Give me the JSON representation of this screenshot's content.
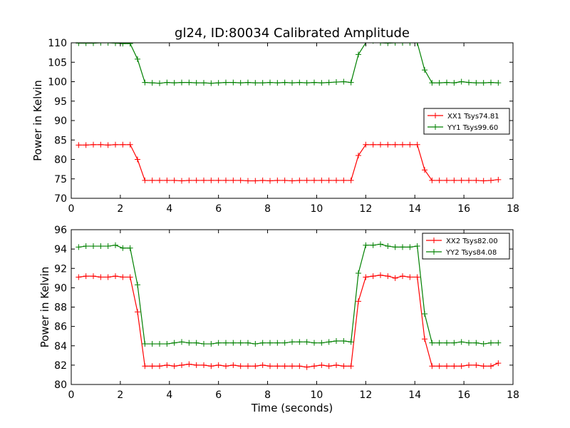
{
  "chart_data": [
    {
      "type": "line",
      "title": "gl24, ID:80034 Calibrated Amplitude",
      "xlabel": "",
      "ylabel": "Power in Kelvin",
      "xlim": [
        0,
        18
      ],
      "ylim": [
        70,
        110
      ],
      "xticks": [
        0,
        2,
        4,
        6,
        8,
        10,
        12,
        14,
        16,
        18
      ],
      "yticks": [
        70,
        75,
        80,
        85,
        90,
        95,
        100,
        105,
        110
      ],
      "grid": false,
      "legend_position": "right",
      "colors": {
        "XX1 Tsys74.81": "#ff0000",
        "YY1 Tsys99.60": "#008000"
      },
      "x": [
        0.3,
        0.6,
        0.9,
        1.2,
        1.5,
        1.8,
        2.1,
        2.4,
        2.7,
        3.0,
        3.3,
        3.6,
        3.9,
        4.2,
        4.5,
        4.8,
        5.1,
        5.4,
        5.7,
        6.0,
        6.3,
        6.6,
        6.9,
        7.2,
        7.5,
        7.8,
        8.1,
        8.4,
        8.7,
        9.0,
        9.3,
        9.6,
        9.9,
        10.2,
        10.5,
        10.8,
        11.1,
        11.4,
        11.7,
        12.0,
        12.3,
        12.6,
        12.9,
        13.2,
        13.5,
        13.8,
        14.1,
        14.4,
        14.7,
        15.0,
        15.3,
        15.6,
        15.9,
        16.2,
        16.5,
        16.8,
        17.1,
        17.4
      ],
      "series": [
        {
          "name": "XX1 Tsys74.81",
          "values": [
            83.7,
            83.7,
            83.8,
            83.8,
            83.7,
            83.8,
            83.8,
            83.8,
            80.0,
            74.6,
            74.6,
            74.6,
            74.6,
            74.6,
            74.5,
            74.6,
            74.6,
            74.6,
            74.6,
            74.6,
            74.6,
            74.6,
            74.6,
            74.5,
            74.5,
            74.6,
            74.5,
            74.6,
            74.6,
            74.5,
            74.6,
            74.6,
            74.6,
            74.6,
            74.6,
            74.6,
            74.6,
            74.6,
            81.0,
            83.8,
            83.8,
            83.8,
            83.8,
            83.8,
            83.8,
            83.8,
            83.8,
            77.3,
            74.6,
            74.6,
            74.6,
            74.6,
            74.6,
            74.6,
            74.6,
            74.5,
            74.6,
            74.8
          ]
        },
        {
          "name": "YY1 Tsys99.60",
          "values": [
            109.9,
            109.9,
            109.9,
            110.0,
            110.0,
            109.9,
            109.8,
            109.8,
            105.8,
            99.8,
            99.7,
            99.6,
            99.8,
            99.7,
            99.8,
            99.8,
            99.7,
            99.7,
            99.6,
            99.7,
            99.8,
            99.8,
            99.7,
            99.8,
            99.7,
            99.7,
            99.8,
            99.7,
            99.8,
            99.7,
            99.8,
            99.7,
            99.8,
            99.7,
            99.8,
            99.9,
            100.0,
            99.8,
            107.0,
            110.0,
            110.5,
            110.0,
            109.9,
            110.0,
            110.0,
            110.0,
            110.0,
            103.0,
            99.7,
            99.7,
            99.8,
            99.7,
            100.0,
            99.8,
            99.7,
            99.7,
            99.8,
            99.7
          ]
        }
      ]
    },
    {
      "type": "line",
      "title": "",
      "xlabel": "Time (seconds)",
      "ylabel": "Power in Kelvin",
      "xlim": [
        0,
        18
      ],
      "ylim": [
        80,
        96
      ],
      "xticks": [
        0,
        2,
        4,
        6,
        8,
        10,
        12,
        14,
        16,
        18
      ],
      "yticks": [
        80,
        82,
        84,
        86,
        88,
        90,
        92,
        94,
        96
      ],
      "grid": false,
      "legend_position": "top-right",
      "colors": {
        "XX2 Tsys82.00": "#ff0000",
        "YY2 Tsys84.08": "#008000"
      },
      "x": [
        0.3,
        0.6,
        0.9,
        1.2,
        1.5,
        1.8,
        2.1,
        2.4,
        2.7,
        3.0,
        3.3,
        3.6,
        3.9,
        4.2,
        4.5,
        4.8,
        5.1,
        5.4,
        5.7,
        6.0,
        6.3,
        6.6,
        6.9,
        7.2,
        7.5,
        7.8,
        8.1,
        8.4,
        8.7,
        9.0,
        9.3,
        9.6,
        9.9,
        10.2,
        10.5,
        10.8,
        11.1,
        11.4,
        11.7,
        12.0,
        12.3,
        12.6,
        12.9,
        13.2,
        13.5,
        13.8,
        14.1,
        14.4,
        14.7,
        15.0,
        15.3,
        15.6,
        15.9,
        16.2,
        16.5,
        16.8,
        17.1,
        17.4
      ],
      "series": [
        {
          "name": "XX2 Tsys82.00",
          "values": [
            91.1,
            91.2,
            91.2,
            91.1,
            91.1,
            91.2,
            91.1,
            91.1,
            87.5,
            81.9,
            81.9,
            81.9,
            82.0,
            81.9,
            82.0,
            82.1,
            82.0,
            82.0,
            81.9,
            82.0,
            81.9,
            82.0,
            81.9,
            81.9,
            81.9,
            82.0,
            81.9,
            81.9,
            81.9,
            81.9,
            81.9,
            81.8,
            81.9,
            82.0,
            81.9,
            82.0,
            81.9,
            81.9,
            88.6,
            91.1,
            91.2,
            91.3,
            91.2,
            91.0,
            91.2,
            91.1,
            91.1,
            84.7,
            81.9,
            81.9,
            81.9,
            81.9,
            81.9,
            82.0,
            82.0,
            81.9,
            81.9,
            82.2
          ]
        },
        {
          "name": "YY2 Tsys84.08",
          "values": [
            94.2,
            94.3,
            94.3,
            94.3,
            94.3,
            94.4,
            94.1,
            94.1,
            90.3,
            84.2,
            84.2,
            84.2,
            84.2,
            84.3,
            84.4,
            84.3,
            84.3,
            84.2,
            84.2,
            84.3,
            84.3,
            84.3,
            84.3,
            84.3,
            84.2,
            84.3,
            84.3,
            84.3,
            84.3,
            84.4,
            84.4,
            84.4,
            84.3,
            84.3,
            84.4,
            84.5,
            84.5,
            84.4,
            91.5,
            94.4,
            94.4,
            94.5,
            94.3,
            94.2,
            94.2,
            94.2,
            94.3,
            87.3,
            84.3,
            84.3,
            84.3,
            84.3,
            84.4,
            84.3,
            84.3,
            84.2,
            84.3,
            84.3
          ]
        }
      ]
    }
  ]
}
